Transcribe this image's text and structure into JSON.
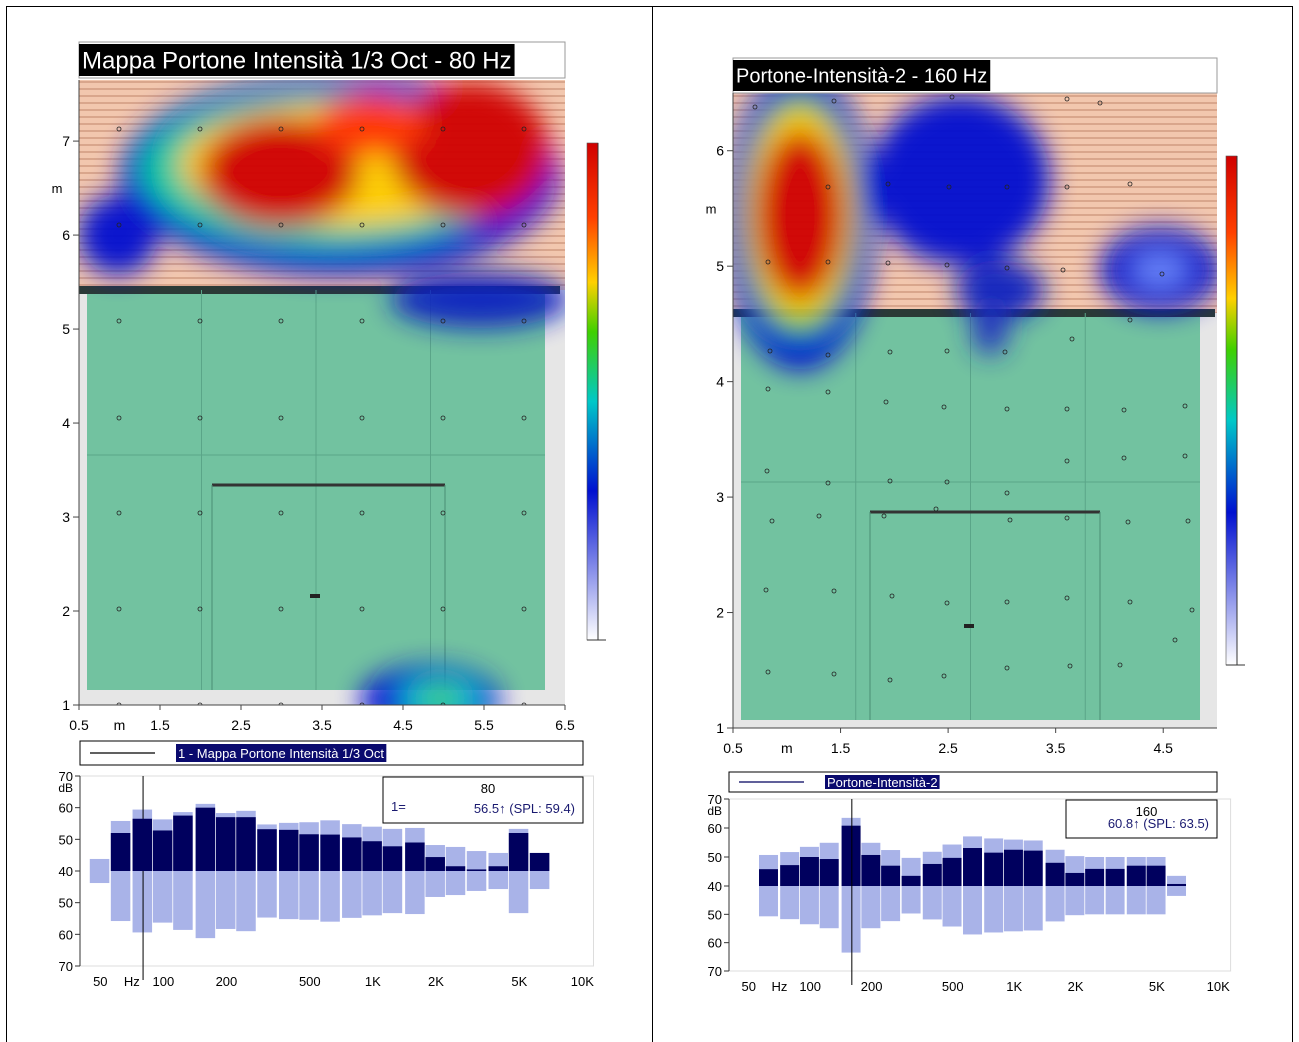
{
  "chart_data": [
    {
      "type": "heatmap",
      "title": "Mappa Portone Intensità 1/3 Oct - 80 Hz",
      "xlim": [
        0.5,
        6.5
      ],
      "ylim": [
        1,
        7.65
      ],
      "xticks": [
        0.5,
        1.5,
        2.5,
        3.5,
        4.5,
        5.5,
        6.5
      ],
      "yticks": [
        1,
        2,
        3,
        4,
        5,
        6,
        7
      ],
      "xlabel": "m",
      "ylabel": "m"
    },
    {
      "type": "bar",
      "x": [
        50,
        63,
        80,
        100,
        125,
        160,
        200,
        250,
        315,
        400,
        500,
        630,
        800,
        1000,
        1250,
        1600,
        2000,
        2500,
        3150,
        4000,
        5000,
        6300
      ],
      "series": [
        {
          "name": "1 - Mappa Portone Intensità 1/3 Oct",
          "color": "#00005e",
          "values": [
            null,
            52,
            56.5,
            52.8,
            57.5,
            60,
            57,
            57,
            53.2,
            53,
            51.6,
            51.5,
            50.6,
            49.4,
            47.8,
            49,
            44.4,
            41.5,
            40.5,
            41.5,
            52,
            45.7
          ]
        },
        {
          "color": "#a9b3e8",
          "mirror": true,
          "values": [
            43.8,
            55.8,
            59.4,
            56.3,
            58.6,
            61.2,
            58.3,
            59,
            54.7,
            55.2,
            55.4,
            56,
            54.8,
            54,
            53.3,
            53.6,
            48.2,
            47.6,
            46.3,
            45.7,
            53.3,
            45.7
          ]
        }
      ],
      "xlim": [
        40,
        11300
      ],
      "xscale": "log",
      "xticks": [
        50,
        100,
        200,
        500,
        {
          "value": 1000,
          "label": "1K"
        },
        {
          "value": 2000,
          "label": "2K"
        },
        {
          "value": 5000,
          "label": "5K"
        },
        {
          "value": 10000,
          "label": "10K"
        }
      ],
      "xlabel": "Hz",
      "ylabel": "dB",
      "ylim": [
        40,
        70
      ],
      "yticks": [
        40,
        50,
        60,
        70
      ],
      "y2lim": [
        40,
        70
      ],
      "y2ticks": [
        50,
        60,
        70
      ],
      "cursor": {
        "x": 80,
        "label": "1=",
        "readout": "56.5↑ (SPL: 59.4)"
      }
    },
    {
      "type": "heatmap",
      "title": "Portone-Intensità-2 - 160 Hz",
      "xlim": [
        0.5,
        5
      ],
      "ylim": [
        1,
        6.5
      ],
      "xticks": [
        0.5,
        1.5,
        2.5,
        3.5,
        4.5
      ],
      "yticks": [
        1,
        2,
        3,
        4,
        5,
        6
      ],
      "xlabel": "m",
      "ylabel": "m"
    },
    {
      "type": "bar",
      "x": [
        63,
        80,
        100,
        125,
        160,
        200,
        250,
        315,
        400,
        500,
        630,
        800,
        1000,
        1250,
        1600,
        2000,
        2500,
        3150,
        4000,
        5000,
        6300
      ],
      "series": [
        {
          "name": "Portone-Intensità-2",
          "color": "#00005e",
          "values": [
            45.8,
            47.2,
            50,
            49.3,
            60.8,
            50.7,
            47,
            43.5,
            47.6,
            49.7,
            53.1,
            51.5,
            52.5,
            52.2,
            48,
            44.5,
            45.9,
            45.9,
            47,
            47,
            40.7
          ]
        },
        {
          "color": "#a9b3e8",
          "mirror": true,
          "values": [
            50.7,
            51.7,
            53.5,
            54.9,
            63.5,
            54.9,
            52.4,
            49.7,
            51.8,
            54.3,
            57.1,
            56.4,
            56,
            55.7,
            52.5,
            50.3,
            50,
            50,
            50,
            50,
            43.5
          ]
        }
      ],
      "xlim": [
        40,
        11500
      ],
      "xscale": "log",
      "xticks": [
        50,
        100,
        200,
        500,
        {
          "value": 1000,
          "label": "1K"
        },
        {
          "value": 2000,
          "label": "2K"
        },
        {
          "value": 5000,
          "label": "5K"
        },
        {
          "value": 10000,
          "label": "10K"
        }
      ],
      "xlabel": "Hz",
      "ylabel": "dB",
      "ylim": [
        40,
        70
      ],
      "yticks": [
        40,
        50,
        60,
        70
      ],
      "y2lim": [
        40,
        70
      ],
      "y2ticks": [
        50,
        60,
        70
      ],
      "cursor": {
        "x": 160,
        "readout": "60.8↑ (SPL: 63.5)"
      }
    }
  ]
}
